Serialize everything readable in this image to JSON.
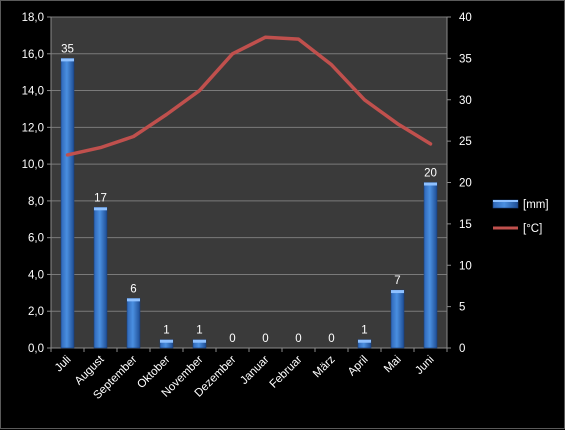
{
  "chart_data": {
    "type": "bar",
    "categories": [
      "Juli",
      "August",
      "September",
      "Oktober",
      "November",
      "Dezember",
      "Januar",
      "Februar",
      "März",
      "April",
      "Mai",
      "Juni"
    ],
    "series": [
      {
        "name": "[mm]",
        "type": "bar",
        "axis": "right",
        "values": [
          35,
          17,
          6,
          1,
          1,
          0,
          0,
          0,
          0,
          1,
          7,
          20
        ],
        "color": "#4a8fe0"
      },
      {
        "name": "[°C]",
        "type": "line",
        "axis": "left",
        "values": [
          10.5,
          10.9,
          11.5,
          12.7,
          14.0,
          16.0,
          16.9,
          16.8,
          15.4,
          13.5,
          12.2,
          11.1
        ],
        "color": "#c0504d"
      }
    ],
    "y_left": {
      "min": 0,
      "max": 18,
      "step": 2,
      "tick_labels": [
        "0,0",
        "2,0",
        "4,0",
        "6,0",
        "8,0",
        "10,0",
        "12,0",
        "14,0",
        "16,0",
        "18,0"
      ]
    },
    "y_right": {
      "min": 0,
      "max": 40,
      "step": 5,
      "tick_labels": [
        "0",
        "5",
        "10",
        "15",
        "20",
        "25",
        "30",
        "35",
        "40"
      ]
    },
    "grid": true,
    "legend_position": "right",
    "colors": {
      "background": "#000000",
      "plot_area": "#3a3a3a",
      "grid": "#7a7a7a",
      "text": "#ffffff"
    }
  }
}
